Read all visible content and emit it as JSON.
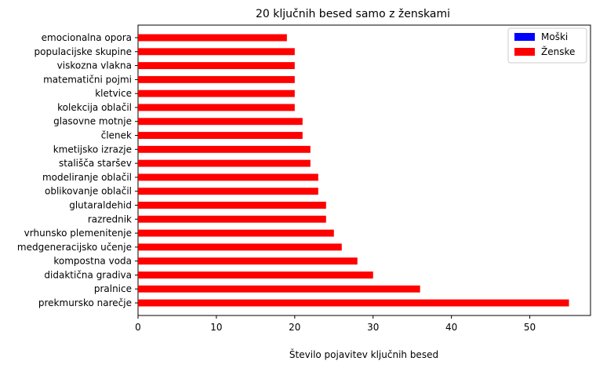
{
  "chart_data": {
    "type": "bar",
    "orientation": "horizontal",
    "title": "20 ključnih besed samo z ženskami",
    "xlabel": "Število pojavitev ključnih besed",
    "ylabel": "",
    "xlim": [
      0,
      57.75
    ],
    "xticks": [
      0,
      10,
      20,
      30,
      40,
      50
    ],
    "grid": false,
    "legend_position": "top-right",
    "categories": [
      "prekmursko narečje",
      "pralnice",
      "didaktična gradiva",
      "kompostna voda",
      "medgeneracijsko učenje",
      "vrhunsko plemenitenje",
      "razrednik",
      "glutaraldehid",
      "oblikovanje oblačil",
      "modeliranje oblačil",
      "stališča staršev",
      "kmetijsko izrazje",
      "členek",
      "glasovne motnje",
      "kolekcija oblačil",
      "kletvice",
      "matematični pojmi",
      "viskozna vlakna",
      "populacijske skupine",
      "emocionalna opora"
    ],
    "series": [
      {
        "name": "Moški",
        "color": "#0000ff",
        "values": [
          0,
          0,
          0,
          0,
          0,
          0,
          0,
          0,
          0,
          0,
          0,
          0,
          0,
          0,
          0,
          0,
          0,
          0,
          0,
          0
        ]
      },
      {
        "name": "Ženske",
        "color": "#ff0000",
        "values": [
          55,
          36,
          30,
          28,
          26,
          25,
          24,
          24,
          23,
          23,
          22,
          22,
          21,
          21,
          20,
          20,
          20,
          20,
          20,
          19
        ]
      }
    ]
  }
}
